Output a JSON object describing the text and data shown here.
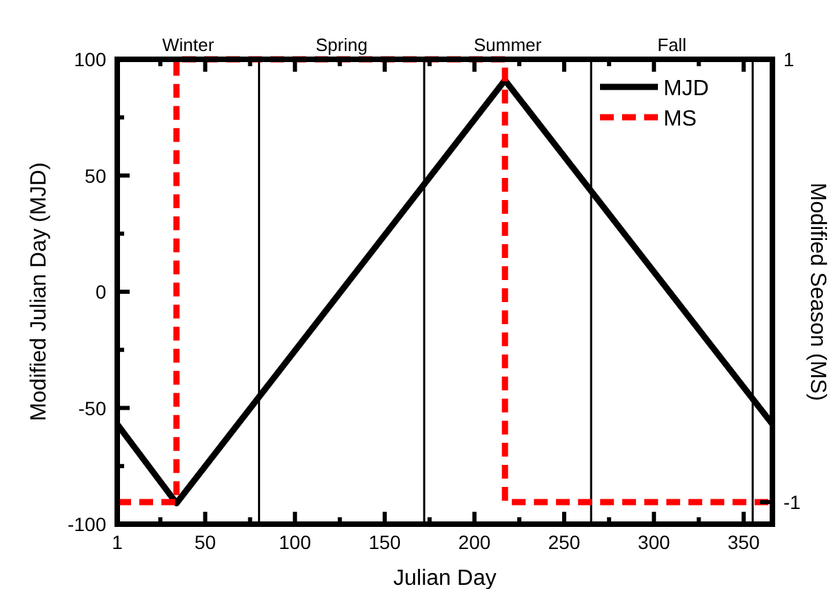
{
  "chart_data": {
    "type": "line",
    "xlabel": "Julian Day",
    "ylabel": "Modified Julian Day (MJD)",
    "y2label": "Modified Season (MS)",
    "xlim": [
      1,
      366
    ],
    "xticks": [
      1,
      {
        "value": 25,
        "label": null
      },
      50,
      {
        "value": 75,
        "label": null
      },
      100,
      {
        "value": 125,
        "label": null
      },
      150,
      {
        "value": 175,
        "label": null
      },
      200,
      {
        "value": 225,
        "label": null
      },
      250,
      {
        "value": 275,
        "label": null
      },
      300,
      {
        "value": 325,
        "label": null
      },
      350
    ],
    "annotations": [
      "Winter",
      "Spring",
      "Summer",
      "Fall"
    ],
    "ylim": [
      -100,
      100
    ],
    "yticks": [
      -100,
      {
        "value": -75,
        "label": null
      },
      -50,
      {
        "value": -25,
        "label": null
      },
      0,
      {
        "value": 25,
        "label": null
      },
      50,
      {
        "value": 75,
        "label": null
      },
      100
    ],
    "y2lim": [
      -1.1,
      1
    ],
    "y2ticks": [
      -1,
      1
    ],
    "legend": "top right",
    "grid": false,
    "ref_lines": [
      {
        "axis": "x",
        "value": 80,
        "label": null
      },
      {
        "axis": "x",
        "value": 172,
        "label": null
      },
      {
        "axis": "x",
        "value": 265,
        "label": null
      },
      {
        "axis": "x",
        "value": 355,
        "label": null
      }
    ],
    "series": [
      {
        "name": "MJD",
        "color": "#000000",
        "x": [
          1,
          34,
          217,
          366
        ],
        "values": [
          -57,
          -91,
          91,
          -57
        ],
        "line_style": "solid"
      },
      {
        "name": "MS",
        "color": "#ff0000",
        "x": [
          1,
          34,
          34,
          217,
          217,
          366
        ],
        "values": [
          -1,
          -1,
          1,
          1,
          -1,
          -1
        ],
        "axis": "y2",
        "line_style": "dashed"
      }
    ]
  }
}
